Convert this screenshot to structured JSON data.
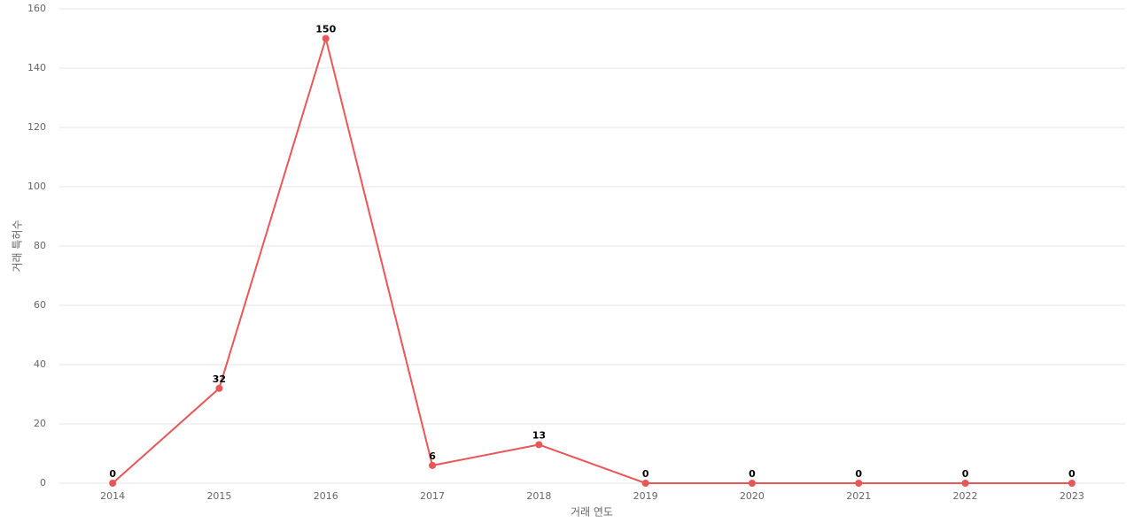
{
  "chart_data": {
    "type": "line",
    "x_label": "거래 연도",
    "y_label": "거래 특허수",
    "categories": [
      "2014",
      "2015",
      "2016",
      "2017",
      "2018",
      "2019",
      "2020",
      "2021",
      "2022",
      "2023"
    ],
    "series": [
      {
        "name": "거래 특허수",
        "color": "#e95658",
        "values": [
          0,
          32,
          150,
          6,
          13,
          0,
          0,
          0,
          0,
          0
        ]
      }
    ],
    "ylim": [
      0,
      160
    ],
    "yticks": [
      0,
      20,
      40,
      60,
      80,
      100,
      120,
      140,
      160
    ],
    "grid": true
  }
}
